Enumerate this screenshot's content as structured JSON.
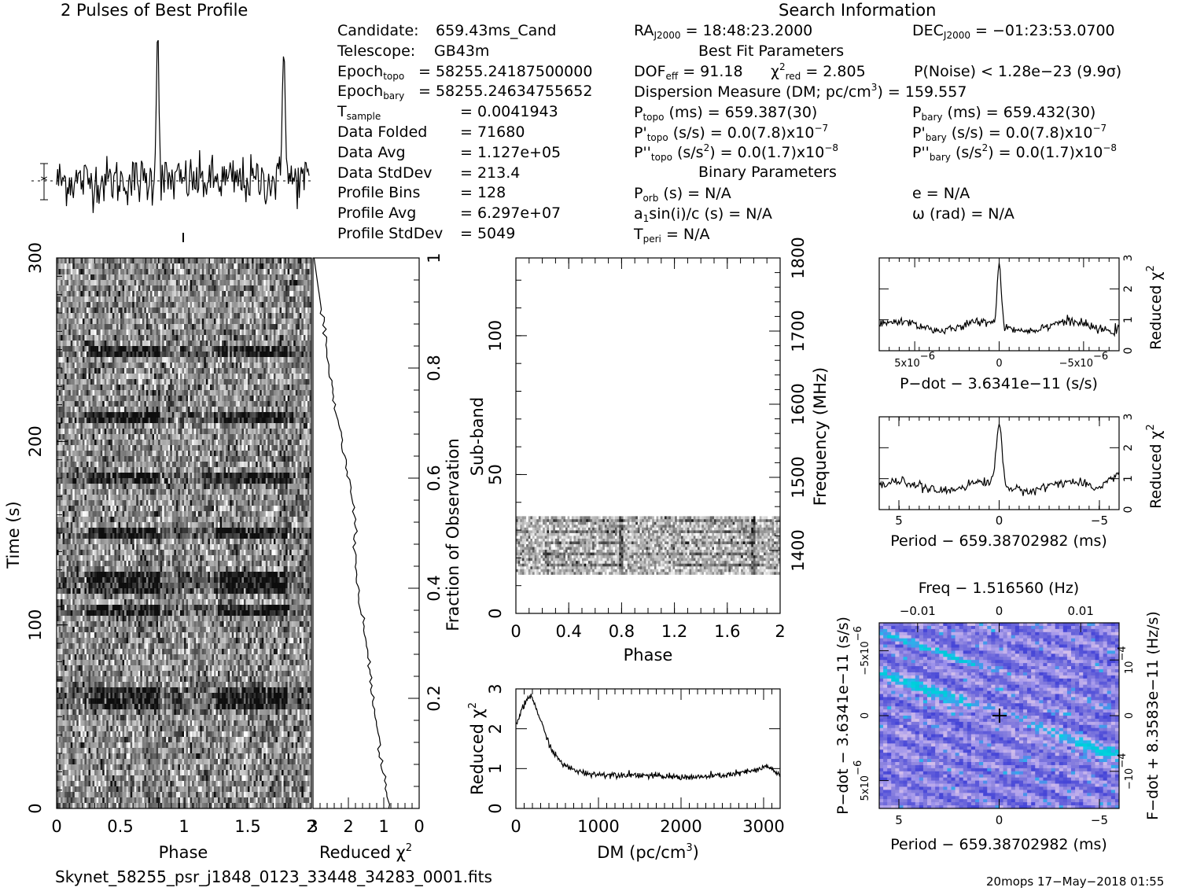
{
  "header": {
    "profile_title": "2 Pulses of Best Profile",
    "search_title": "Search Information",
    "best_fit_title": "Best Fit Parameters",
    "binary_title": "Binary Parameters"
  },
  "info_left": [
    {
      "label": "Candidate:",
      "value": "659.43ms_Cand"
    },
    {
      "label": "Telescope:",
      "value": "GB43m"
    },
    {
      "label": "Epoch",
      "sub": "topo",
      "value": "= 58255.24187500000"
    },
    {
      "label": "Epoch",
      "sub": "bary",
      "value": "= 58255.24634755652"
    },
    {
      "label": "T",
      "sub": "sample",
      "value": "=   0.0041943"
    },
    {
      "label": "Data Folded",
      "value": "=   71680"
    },
    {
      "label": "Data Avg",
      "value": "=   1.127e+05"
    },
    {
      "label": "Data StdDev",
      "value": "=   213.4"
    },
    {
      "label": "Profile Bins",
      "value": "=   128"
    },
    {
      "label": "Profile Avg",
      "value": "=   6.297e+07"
    },
    {
      "label": "Profile StdDev",
      "value": "=   5049"
    }
  ],
  "info_mid": {
    "ra_label": "RA",
    "ra_sub": "J2000",
    "ra_value": "= 18:48:23.2000",
    "dec_label": "DEC",
    "dec_sub": "J2000",
    "dec_value": "= −01:23:53.0700",
    "dof_label": "DOF",
    "dof_sub": "eff",
    "dof_value": "= 91.18",
    "chi_label": "χ",
    "chi_sup": "2",
    "chi_sub": "red",
    "chi_value": "= 2.805",
    "pnoise": "P(Noise) < 1.28e−23   (9.9σ)",
    "dm_text": "Dispersion Measure (DM; pc/cm",
    "dm_sup": "3",
    "dm_value": ") = 159.557",
    "ptopo_label": "P",
    "ptopo_sub": "topo",
    "ptopo_value": "(ms) =  659.387(30)",
    "pbary_label": "P",
    "pbary_sub": "bary",
    "pbary_value": "(ms) =  659.432(30)",
    "pdtopo_label": "P'",
    "pdtopo_sub": "topo",
    "pdtopo_value": "(s/s) = 0.0(7.8)x10",
    "pdtopo_sup": "−7",
    "pdbary_label": "P'",
    "pdbary_sub": "bary",
    "pdbary_value": "(s/s) = 0.0(7.8)x10",
    "pdbary_sup": "−7",
    "pddtopo_label": "P''",
    "pddtopo_sub": "topo",
    "pddtopo_value": "(s/s",
    "pddtopo_sup1": "2",
    "pddtopo_value2": ") = 0.0(1.7)x10",
    "pddtopo_sup2": "−8",
    "pddbary_label": "P''",
    "pddbary_sub": "bary",
    "pddbary_value": "(s/s",
    "pddbary_sup1": "2",
    "pddbary_value2": ") = 0.0(1.7)x10",
    "pddbary_sup2": "−8",
    "porb_label": "P",
    "porb_sub": "orb",
    "porb_value": "(s) = N/A",
    "e_text": "e = N/A",
    "a1_label": "a",
    "a1_sub": "1",
    "a1_value": "sin(i)/c (s) = N/A",
    "omega_text": "ω (rad) = N/A",
    "tperi_label": "T",
    "tperi_sub": "peri",
    "tperi_value": "= N/A"
  },
  "footer": {
    "filename": "Skynet_58255_psr_j1848_0123_33448_34283_0001.fits",
    "stamp": "20mops 17−May−2018 01:55"
  },
  "colors": {
    "ink": "#000000",
    "grey_bg": "#ffffff",
    "plane_base": "#5a5ae6",
    "plane_hot": "#00e0e0"
  },
  "chart_data": [
    {
      "type": "line",
      "id": "profile",
      "title": "2 Pulses of Best Profile",
      "x_range": [
        0,
        2
      ],
      "peaks_phase": [
        0.8,
        1.8
      ],
      "peak_height_sigma": 12
    },
    {
      "type": "heatmap",
      "id": "time-phase",
      "xlabel": "Phase",
      "ylabel": "Time (s)",
      "xlim": [
        0,
        2
      ],
      "ylim": [
        0,
        300
      ],
      "xticks": [
        "0",
        "0.5",
        "1",
        "1.5",
        "2"
      ],
      "yticks": [
        "0",
        "100",
        "200",
        "300"
      ],
      "bright_rows_s": [
        56,
        62,
        108,
        120,
        127,
        150,
        180,
        212,
        250
      ]
    },
    {
      "type": "line",
      "id": "chi-vs-time",
      "xlabel": "Reduced χ",
      "xlabel_sup": "2",
      "ylabel": "Fraction of Observation",
      "xlim": [
        3,
        0
      ],
      "ylim": [
        0,
        1
      ],
      "xticks": [
        "3",
        "2",
        "1",
        "0"
      ],
      "yticks": [
        "0.2",
        "0.4",
        "0.6",
        "0.8",
        "1"
      ],
      "x": [
        0.85,
        0.95,
        1.1,
        1.3,
        1.5,
        1.75,
        1.85,
        2.3,
        2.55,
        2.75
      ],
      "y": [
        0,
        0.05,
        0.1,
        0.2,
        0.3,
        0.4,
        0.55,
        0.7,
        0.8,
        0.9
      ]
    },
    {
      "type": "heatmap",
      "id": "subband-phase",
      "xlabel": "Phase",
      "ylabel": "Sub-band",
      "y2label": "Frequency (MHz)",
      "xlim": [
        0,
        2
      ],
      "ylim": [
        0,
        128
      ],
      "xticks": [
        "0",
        "0.4",
        "0.8",
        "1.2",
        "1.6",
        "2"
      ],
      "yticks": [
        "0",
        "50",
        "100"
      ],
      "y2ticks": [
        "1400",
        "1500",
        "1600",
        "1700",
        "1800"
      ],
      "band_range": [
        14,
        35
      ]
    },
    {
      "type": "line",
      "id": "chi-vs-dm",
      "xlabel": "DM (pc/cm",
      "xlabel_sup": "3",
      "xlabel_end": ")",
      "ylabel": "Reduced χ",
      "ylabel_sup": "2",
      "xlim": [
        0,
        3200
      ],
      "ylim": [
        0,
        3
      ],
      "xticks": [
        "0",
        "1000",
        "2000",
        "3000"
      ],
      "yticks": [
        "0",
        "1",
        "2",
        "3"
      ],
      "x": [
        0,
        100,
        180,
        250,
        350,
        450,
        600,
        800,
        1000,
        1400,
        1800,
        2200,
        2600,
        2900,
        3050,
        3200
      ],
      "y": [
        2.1,
        2.6,
        2.85,
        2.5,
        1.9,
        1.4,
        1.05,
        0.9,
        0.85,
        0.85,
        0.8,
        0.78,
        0.85,
        0.95,
        1.05,
        0.85
      ]
    },
    {
      "type": "line",
      "id": "chi-vs-pdot",
      "xlabel": "P−dot − 3.6341e−11 (s/s)",
      "ylabel": "Reduced χ",
      "ylabel_sup": "2",
      "xlim": [
        8e-06,
        -8e-06
      ],
      "ylim": [
        0,
        3
      ],
      "xticks": [
        "5x10",
        "0",
        "−5x10"
      ],
      "xtick_sup": "−6",
      "yticks": [
        "0",
        "1",
        "2",
        "3"
      ],
      "peak_x": 0,
      "peak_y": 2.8,
      "baseline": 0.8
    },
    {
      "type": "line",
      "id": "chi-vs-period",
      "xlabel": "Period − 659.38702982 (ms)",
      "ylabel": "Reduced χ",
      "ylabel_sup": "2",
      "xlim": [
        6,
        -6
      ],
      "ylim": [
        0,
        3
      ],
      "xticks": [
        "5",
        "0",
        "−5"
      ],
      "yticks": [
        "0",
        "1",
        "2",
        "3"
      ],
      "peak_x": 0,
      "peak_y": 2.7,
      "baseline": 0.75
    },
    {
      "type": "heatmap",
      "id": "p-pdot-plane",
      "title": "Freq − 1.516560 (Hz)",
      "xlabel": "Period − 659.38702982 (ms)",
      "ylabel": "P−dot − 3.6341e−11 (s/s)",
      "y2label": "F−dot + 8.3583e−11 (Hz/s)",
      "xticks": [
        "5",
        "0",
        "−5"
      ],
      "x2ticks": [
        "−0.01",
        "0",
        "0.01"
      ],
      "yticks": [
        "−5x10",
        "0",
        "5x10"
      ],
      "ytick_sup": "−6",
      "y2ticks": [
        "10",
        "0",
        "−10"
      ],
      "y2tick_sup": "−4",
      "best_fit": [
        0,
        0
      ]
    }
  ]
}
